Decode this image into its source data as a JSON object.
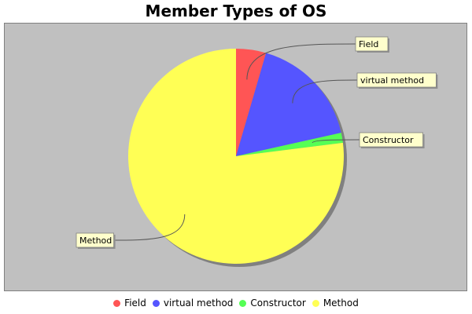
{
  "chart_data": {
    "type": "pie",
    "title": "Member Types of OS",
    "categories": [
      "Field",
      "virtual method",
      "Constructor",
      "Method"
    ],
    "values": [
      4.5,
      17.0,
      1.5,
      77.0
    ],
    "colors": [
      "#ff5555",
      "#5555ff",
      "#55ff55",
      "#ffff55"
    ],
    "legend_position": "bottom",
    "plot_background": "#c0c0c0"
  }
}
